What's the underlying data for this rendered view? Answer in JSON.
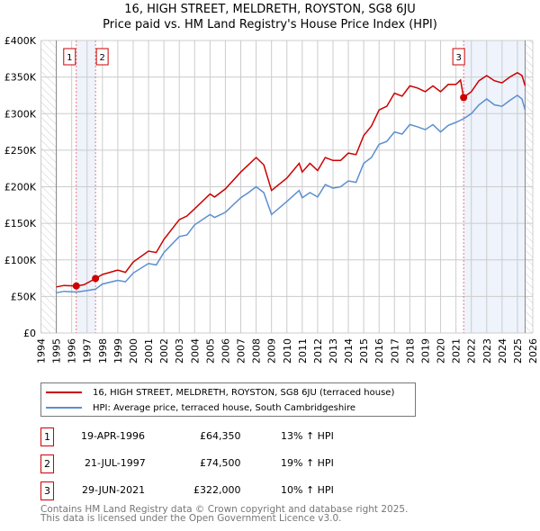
{
  "chart_data": {
    "type": "line",
    "title": "16, HIGH STREET, MELDRETH, ROYSTON, SG8 6JU",
    "subtitle": "Price paid vs. HM Land Registry's House Price Index (HPI)",
    "xlim": [
      1994,
      2026
    ],
    "ylim": [
      0,
      400000
    ],
    "x_ticks": [
      "1994",
      "1995",
      "1996",
      "1997",
      "1998",
      "1999",
      "2000",
      "2001",
      "2002",
      "2003",
      "2004",
      "2005",
      "2006",
      "2007",
      "2008",
      "2009",
      "2010",
      "2011",
      "2012",
      "2013",
      "2014",
      "2015",
      "2016",
      "2017",
      "2018",
      "2019",
      "2020",
      "2021",
      "2022",
      "2023",
      "2024",
      "2025",
      "2026"
    ],
    "y_ticks": [
      {
        "v": 0,
        "label": "£0"
      },
      {
        "v": 50000,
        "label": "£50K"
      },
      {
        "v": 100000,
        "label": "£100K"
      },
      {
        "v": 150000,
        "label": "£150K"
      },
      {
        "v": 200000,
        "label": "£200K"
      },
      {
        "v": 250000,
        "label": "£250K"
      },
      {
        "v": 300000,
        "label": "£300K"
      },
      {
        "v": 350000,
        "label": "£350K"
      },
      {
        "v": 400000,
        "label": "£400K"
      }
    ],
    "series": [
      {
        "name": "16, HIGH STREET, MELDRETH, ROYSTON, SG8 6JU (terraced house)",
        "color": "#cc0000",
        "x": [
          1995,
          1995.5,
          1996.3,
          1996.8,
          1997.55,
          1998,
          1999,
          1999.5,
          2000,
          2001,
          2001.5,
          2002,
          2003,
          2003.5,
          2004,
          2005,
          2005.3,
          2006,
          2007,
          2007.5,
          2008,
          2008.5,
          2009,
          2010,
          2010.8,
          2011,
          2011.5,
          2012,
          2012.5,
          2013,
          2013.5,
          2014,
          2014.5,
          2015,
          2015.5,
          2016,
          2016.5,
          2017,
          2017.5,
          2018,
          2018.5,
          2019,
          2019.5,
          2020,
          2020.5,
          2021,
          2021.3,
          2021.5,
          2022,
          2022.5,
          2023,
          2023.5,
          2024,
          2024.5,
          2025,
          2025.3,
          2025.5
        ],
        "y": [
          63000,
          65000,
          64350,
          66000,
          74500,
          80000,
          86000,
          83000,
          97000,
          112000,
          110000,
          128000,
          155000,
          160000,
          170000,
          190000,
          186000,
          197000,
          220000,
          230000,
          240000,
          230000,
          195000,
          212000,
          232000,
          220000,
          232000,
          222000,
          240000,
          236000,
          236000,
          246000,
          244000,
          270000,
          283000,
          305000,
          310000,
          328000,
          324000,
          338000,
          335000,
          330000,
          338000,
          330000,
          340000,
          340000,
          346000,
          322000,
          330000,
          345000,
          352000,
          345000,
          342000,
          350000,
          356000,
          352000,
          338000
        ]
      },
      {
        "name": "HPI: Average price, terraced house, South Cambridgeshire",
        "color": "#5b8fd0",
        "x": [
          1995,
          1995.5,
          1996.3,
          1997,
          1997.55,
          1998,
          1999,
          1999.5,
          2000,
          2001,
          2001.5,
          2002,
          2003,
          2003.5,
          2004,
          2005,
          2005.3,
          2006,
          2007,
          2007.5,
          2008,
          2008.5,
          2009,
          2010,
          2010.8,
          2011,
          2011.5,
          2012,
          2012.5,
          2013,
          2013.5,
          2014,
          2014.5,
          2015,
          2015.5,
          2016,
          2016.5,
          2017,
          2017.5,
          2018,
          2018.5,
          2019,
          2019.5,
          2020,
          2020.5,
          2021,
          2021.5,
          2022,
          2022.5,
          2023,
          2023.5,
          2024,
          2024.5,
          2025,
          2025.3,
          2025.5
        ],
        "y": [
          55000,
          57000,
          56000,
          58000,
          60000,
          67000,
          72000,
          70000,
          82000,
          95000,
          93000,
          110000,
          132000,
          134000,
          148000,
          162000,
          158000,
          165000,
          185000,
          192000,
          200000,
          192000,
          162000,
          180000,
          195000,
          185000,
          192000,
          186000,
          203000,
          198000,
          200000,
          208000,
          206000,
          232000,
          240000,
          258000,
          262000,
          275000,
          272000,
          285000,
          282000,
          278000,
          285000,
          275000,
          284000,
          288000,
          293000,
          300000,
          312000,
          320000,
          312000,
          310000,
          318000,
          325000,
          320000,
          305000
        ]
      }
    ],
    "sales": [
      {
        "n": "1",
        "x": 1996.3,
        "y": 64350,
        "date": "19-APR-1996",
        "price": "£64,350",
        "hpi": "13% ↑ HPI"
      },
      {
        "n": "2",
        "x": 1997.55,
        "y": 74500,
        "date": "21-JUL-1997",
        "price": "£74,500",
        "hpi": "19% ↑ HPI"
      },
      {
        "n": "3",
        "x": 2021.5,
        "y": 322000,
        "date": "29-JUN-2021",
        "price": "£322,000",
        "hpi": "10% ↑ HPI"
      }
    ],
    "shaded": [
      [
        1996.3,
        1997.55
      ],
      [
        2021.5,
        2025.5
      ]
    ],
    "data_end": 2025.5
  },
  "legend": {
    "red": "16, HIGH STREET, MELDRETH, ROYSTON, SG8 6JU (terraced house)",
    "blue": "HPI: Average price, terraced house, South Cambridgeshire"
  },
  "footer": {
    "line1": "Contains HM Land Registry data © Crown copyright and database right 2025.",
    "line2": "This data is licensed under the Open Government Licence v3.0."
  }
}
